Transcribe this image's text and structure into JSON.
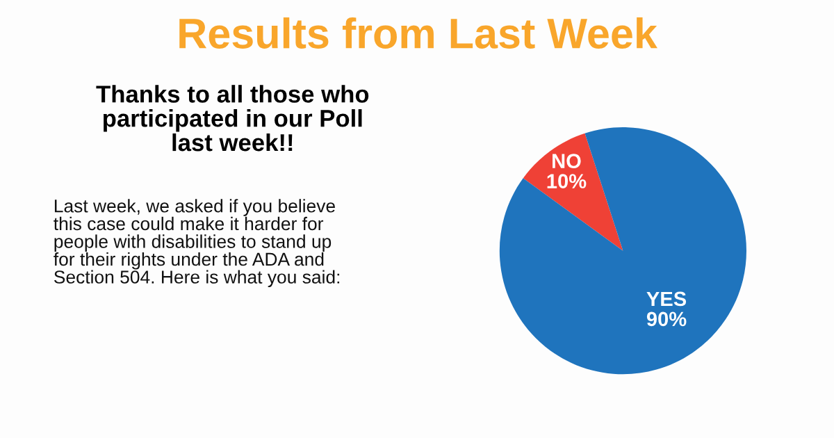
{
  "chart_data": {
    "type": "pie",
    "title": "Results from Last Week",
    "subtitle": "Thanks to all those who\nparticipated in our Poll\nlast week!!",
    "annotations": [
      "Last week, we asked if you believe\nthis case could make it harder for\npeople with disabilities to stand up\nfor their rights under the ADA and\nSection 504. Here is what you said:"
    ],
    "categories": [
      "NO",
      "YES"
    ],
    "values": [
      10,
      90
    ],
    "colors": [
      "#ef4136",
      "#1f74bd"
    ],
    "value_labels": [
      "10%",
      "90%"
    ]
  }
}
